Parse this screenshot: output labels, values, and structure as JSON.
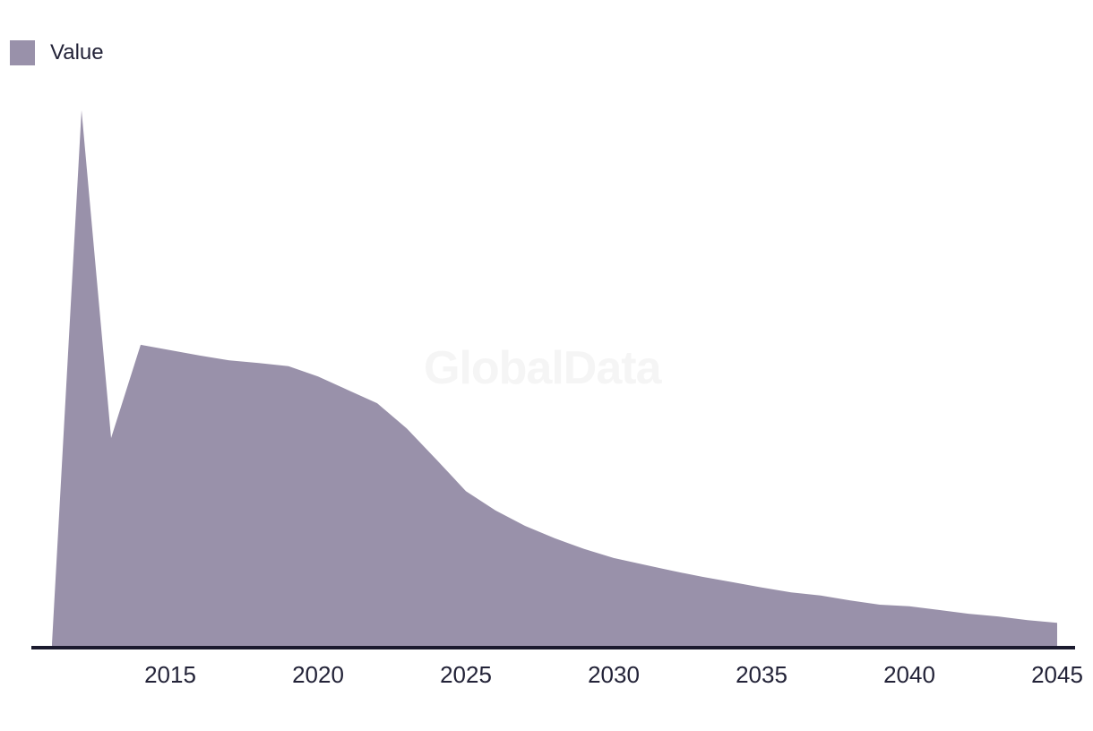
{
  "legend": {
    "label": "Value"
  },
  "watermark": {
    "text": "GlobalData"
  },
  "colors": {
    "area": "#9991AA",
    "axis": "#1B1A2E",
    "text": "#232338",
    "watermark": "#F5F5F5",
    "background": "#FFFFFF"
  },
  "chart_data": {
    "type": "area",
    "title": "",
    "xlabel": "",
    "ylabel": "",
    "legend_entries": [
      "Value"
    ],
    "legend_position": "top-left",
    "grid": false,
    "y_axis_shown": false,
    "value_scale_note": "no y-axis labels visible; values normalized so 2012 peak = 100",
    "x": [
      2011,
      2012,
      2013,
      2014,
      2015,
      2016,
      2017,
      2018,
      2019,
      2020,
      2021,
      2022,
      2023,
      2024,
      2025,
      2026,
      2027,
      2028,
      2029,
      2030,
      2031,
      2032,
      2033,
      2034,
      2035,
      2036,
      2037,
      2038,
      2039,
      2040,
      2041,
      2042,
      2043,
      2044,
      2045
    ],
    "series": [
      {
        "name": "Value",
        "values": [
          0.4,
          100,
          38.8,
          56.2,
          55.2,
          54.2,
          53.3,
          52.8,
          52.2,
          50.3,
          47.8,
          45.3,
          40.6,
          34.8,
          28.9,
          25.3,
          22.4,
          20.1,
          18.1,
          16.4,
          15.2,
          14.0,
          12.9,
          11.9,
          10.9,
          10.0,
          9.4,
          8.5,
          7.7,
          7.4,
          6.7,
          6.0,
          5.5,
          4.8,
          4.3
        ]
      }
    ],
    "x_tick_labels": [
      "2015",
      "2020",
      "2025",
      "2030",
      "2035",
      "2040",
      "2045"
    ],
    "x_range": [
      2011,
      2045
    ]
  }
}
